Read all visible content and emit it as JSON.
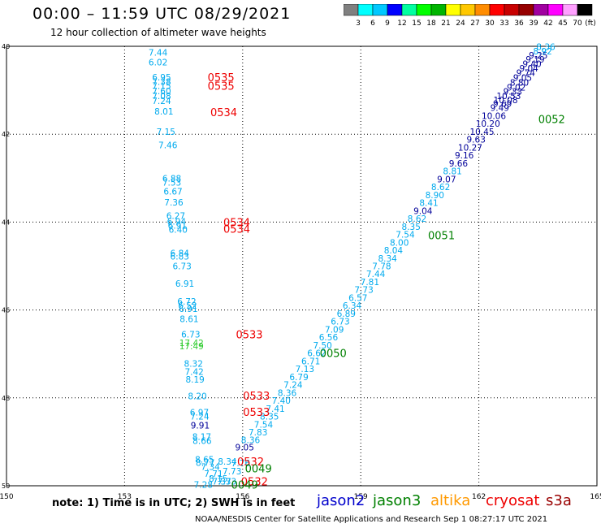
{
  "title": "00:00 – 11:59 UTC 08/29/2021",
  "subtitle": "12 hour collection of altimeter wave heights",
  "note": "note:  1) Time is in UTC;  2) SWH is in feet",
  "credit": "NOAA/NESDIS Center for Satellite Applications and Research     Sep  1 08:27:17 UTC 2021",
  "satellites": [
    {
      "name": "jason2",
      "color": "#0000cc"
    },
    {
      "name": "jason3",
      "color": "#008000"
    },
    {
      "name": "altika",
      "color": "#ff9900"
    },
    {
      "name": "cryosat",
      "color": "#ee0000"
    },
    {
      "name": "s3a",
      "color": "#990000"
    }
  ],
  "colorbar": {
    "labels": [
      "3",
      "6",
      "9",
      "12",
      "15",
      "18",
      "21",
      "24",
      "27",
      "30",
      "33",
      "36",
      "39",
      "42",
      "45",
      "70",
      "(ft)"
    ],
    "colors": [
      "#808080",
      "#00ffff",
      "#00c8ff",
      "#0000ff",
      "#00ffa0",
      "#00ff00",
      "#00b400",
      "#ffff00",
      "#ffc800",
      "#ff8c00",
      "#ff0000",
      "#c80000",
      "#960000",
      "#a000a0",
      "#ff00ff",
      "#ffa0ff",
      "#000000"
    ]
  },
  "chart_data": {
    "type": "scatter",
    "xlabel": "",
    "ylabel": "",
    "xlim": [
      150,
      165
    ],
    "ylim": [
      -50,
      -40
    ],
    "x_ticks": [
      150,
      153,
      156,
      159,
      162,
      165
    ],
    "y_ticks": [
      -40,
      -42,
      -44,
      -46,
      -48,
      -50
    ],
    "y_tick_labels": [
      "40",
      "42",
      "44",
      "46",
      "48",
      "50"
    ],
    "swh_points": [
      {
        "lon": 153.85,
        "lat": -40.14,
        "v": "7.44",
        "c": "#00aaee"
      },
      {
        "lon": 153.85,
        "lat": -40.36,
        "v": "6.02",
        "c": "#00aaee"
      },
      {
        "lon": 153.94,
        "lat": -40.7,
        "v": "6.95",
        "c": "#00aaee"
      },
      {
        "lon": 153.94,
        "lat": -40.8,
        "v": "7.38",
        "c": "#00aaee"
      },
      {
        "lon": 153.94,
        "lat": -40.9,
        "v": "7.15",
        "c": "#00aaee"
      },
      {
        "lon": 153.94,
        "lat": -41.02,
        "v": "7.60",
        "c": "#00aaee"
      },
      {
        "lon": 153.94,
        "lat": -41.13,
        "v": "7.08",
        "c": "#00aaee"
      },
      {
        "lon": 153.94,
        "lat": -41.24,
        "v": "7.24",
        "c": "#00aaee"
      },
      {
        "lon": 154.0,
        "lat": -41.48,
        "v": "8.01",
        "c": "#00aaee"
      },
      {
        "lon": 154.05,
        "lat": -41.94,
        "v": "7.15",
        "c": "#00aaee"
      },
      {
        "lon": 154.1,
        "lat": -42.25,
        "v": "7.46",
        "c": "#00aaee"
      },
      {
        "lon": 154.2,
        "lat": -43.0,
        "v": "6.88",
        "c": "#00aaee"
      },
      {
        "lon": 154.2,
        "lat": -43.1,
        "v": "7.53",
        "c": "#00aaee"
      },
      {
        "lon": 154.23,
        "lat": -43.3,
        "v": "6.67",
        "c": "#00aaee"
      },
      {
        "lon": 154.25,
        "lat": -43.55,
        "v": "7.36",
        "c": "#00aaee"
      },
      {
        "lon": 154.3,
        "lat": -43.85,
        "v": "6.27",
        "c": "#00aaee"
      },
      {
        "lon": 154.32,
        "lat": -43.98,
        "v": "6.94",
        "c": "#00aaee"
      },
      {
        "lon": 154.34,
        "lat": -44.08,
        "v": "6.91",
        "c": "#00aaee"
      },
      {
        "lon": 154.36,
        "lat": -44.17,
        "v": "6.40",
        "c": "#00aaee"
      },
      {
        "lon": 154.4,
        "lat": -44.7,
        "v": "6.84",
        "c": "#00aaee"
      },
      {
        "lon": 154.4,
        "lat": -44.78,
        "v": "6.83",
        "c": "#00aaee"
      },
      {
        "lon": 154.46,
        "lat": -45.0,
        "v": "6.73",
        "c": "#00aaee"
      },
      {
        "lon": 154.53,
        "lat": -45.4,
        "v": "6.91",
        "c": "#00aaee"
      },
      {
        "lon": 154.58,
        "lat": -45.8,
        "v": "6.72",
        "c": "#00aaee"
      },
      {
        "lon": 154.6,
        "lat": -45.9,
        "v": "6.52",
        "c": "#00aaee"
      },
      {
        "lon": 154.62,
        "lat": -45.97,
        "v": "6.91",
        "c": "#00aaee"
      },
      {
        "lon": 154.64,
        "lat": -46.2,
        "v": "8.61",
        "c": "#00aaee"
      },
      {
        "lon": 154.68,
        "lat": -46.55,
        "v": "6.73",
        "c": "#00aaee"
      },
      {
        "lon": 154.7,
        "lat": -46.75,
        "v": "17.42",
        "c": "#33cc33"
      },
      {
        "lon": 154.7,
        "lat": -46.82,
        "v": "17.49",
        "c": "#33cc33"
      },
      {
        "lon": 154.75,
        "lat": -47.22,
        "v": "8.32",
        "c": "#00aaee"
      },
      {
        "lon": 154.77,
        "lat": -47.4,
        "v": "7.42",
        "c": "#00aaee"
      },
      {
        "lon": 154.79,
        "lat": -47.58,
        "v": "8.19",
        "c": "#00aaee"
      },
      {
        "lon": 154.85,
        "lat": -47.96,
        "v": "8.20",
        "c": "#00aaee"
      },
      {
        "lon": 154.9,
        "lat": -48.33,
        "v": "6.97",
        "c": "#00aaee"
      },
      {
        "lon": 154.91,
        "lat": -48.42,
        "v": "7.24",
        "c": "#00aaee"
      },
      {
        "lon": 154.92,
        "lat": -48.62,
        "v": "9.91",
        "c": "#000099"
      },
      {
        "lon": 154.96,
        "lat": -48.88,
        "v": "8.17",
        "c": "#00aaee"
      },
      {
        "lon": 154.97,
        "lat": -48.97,
        "v": "8.66",
        "c": "#00aaee"
      },
      {
        "lon": 155.03,
        "lat": -49.4,
        "v": "8.65",
        "c": "#00aaee"
      },
      {
        "lon": 155.05,
        "lat": -49.47,
        "v": "8.77",
        "c": "#00aaee"
      },
      {
        "lon": 155.18,
        "lat": -49.57,
        "v": "7.34",
        "c": "#00aaee"
      },
      {
        "lon": 155.26,
        "lat": -49.72,
        "v": "7.71",
        "c": "#00aaee"
      },
      {
        "lon": 155.38,
        "lat": -49.83,
        "v": "8.15",
        "c": "#00aaee"
      },
      {
        "lon": 155.47,
        "lat": -49.9,
        "v": "7.37",
        "c": "#00aaee"
      },
      {
        "lon": 155.0,
        "lat": -49.97,
        "v": "7.28",
        "c": "#00aaee"
      },
      {
        "lon": 155.6,
        "lat": -49.9,
        "v": "7.33",
        "c": "#00aaee"
      },
      {
        "lon": 155.73,
        "lat": -49.67,
        "v": "7.73",
        "c": "#00aaee"
      },
      {
        "lon": 155.61,
        "lat": -49.45,
        "v": "8.34",
        "c": "#00aaee"
      },
      {
        "lon": 155.95,
        "lat": -49.48,
        "v": "7.76",
        "c": "#00aaee"
      },
      {
        "lon": 156.05,
        "lat": -49.12,
        "v": "9.05",
        "c": "#000099"
      },
      {
        "lon": 156.2,
        "lat": -48.96,
        "v": "8.36",
        "c": "#00aaee"
      },
      {
        "lon": 156.39,
        "lat": -48.78,
        "v": "7.83",
        "c": "#00aaee"
      },
      {
        "lon": 156.53,
        "lat": -48.6,
        "v": "7.54",
        "c": "#00aaee"
      },
      {
        "lon": 156.68,
        "lat": -48.42,
        "v": "8.35",
        "c": "#00aaee"
      },
      {
        "lon": 156.83,
        "lat": -48.24,
        "v": "7.41",
        "c": "#00aaee"
      },
      {
        "lon": 156.98,
        "lat": -48.06,
        "v": "7.40",
        "c": "#00aaee"
      },
      {
        "lon": 157.13,
        "lat": -47.88,
        "v": "8.36",
        "c": "#00aaee"
      },
      {
        "lon": 157.28,
        "lat": -47.7,
        "v": "7.24",
        "c": "#00aaee"
      },
      {
        "lon": 157.43,
        "lat": -47.52,
        "v": "6.79",
        "c": "#00aaee"
      },
      {
        "lon": 157.58,
        "lat": -47.34,
        "v": "7.13",
        "c": "#00aaee"
      },
      {
        "lon": 157.73,
        "lat": -47.16,
        "v": "6.71",
        "c": "#00aaee"
      },
      {
        "lon": 157.88,
        "lat": -46.98,
        "v": "6.62",
        "c": "#00aaee"
      },
      {
        "lon": 158.03,
        "lat": -46.8,
        "v": "7.50",
        "c": "#00aaee"
      },
      {
        "lon": 158.18,
        "lat": -46.62,
        "v": "6.56",
        "c": "#00aaee"
      },
      {
        "lon": 158.33,
        "lat": -46.44,
        "v": "7.09",
        "c": "#00aaee"
      },
      {
        "lon": 158.48,
        "lat": -46.26,
        "v": "6.73",
        "c": "#00aaee"
      },
      {
        "lon": 158.63,
        "lat": -46.08,
        "v": "6.89",
        "c": "#00aaee"
      },
      {
        "lon": 158.78,
        "lat": -45.9,
        "v": "6.34",
        "c": "#00aaee"
      },
      {
        "lon": 158.93,
        "lat": -45.72,
        "v": "6.57",
        "c": "#00aaee"
      },
      {
        "lon": 159.08,
        "lat": -45.54,
        "v": "7.73",
        "c": "#00aaee"
      },
      {
        "lon": 159.23,
        "lat": -45.36,
        "v": "7.81",
        "c": "#00aaee"
      },
      {
        "lon": 159.38,
        "lat": -45.18,
        "v": "7.44",
        "c": "#00aaee"
      },
      {
        "lon": 159.53,
        "lat": -45.0,
        "v": "7.78",
        "c": "#00aaee"
      },
      {
        "lon": 159.68,
        "lat": -44.82,
        "v": "8.34",
        "c": "#00aaee"
      },
      {
        "lon": 159.83,
        "lat": -44.64,
        "v": "8.04",
        "c": "#00aaee"
      },
      {
        "lon": 159.98,
        "lat": -44.46,
        "v": "8.00",
        "c": "#00aaee"
      },
      {
        "lon": 160.13,
        "lat": -44.28,
        "v": "7.54",
        "c": "#00aaee"
      },
      {
        "lon": 160.28,
        "lat": -44.1,
        "v": "8.35",
        "c": "#00aaee"
      },
      {
        "lon": 160.43,
        "lat": -43.92,
        "v": "8.62",
        "c": "#00aaee"
      },
      {
        "lon": 160.58,
        "lat": -43.74,
        "v": "9.04",
        "c": "#000099"
      },
      {
        "lon": 160.73,
        "lat": -43.56,
        "v": "8.41",
        "c": "#00aaee"
      },
      {
        "lon": 160.88,
        "lat": -43.38,
        "v": "8.90",
        "c": "#00aaee"
      },
      {
        "lon": 161.03,
        "lat": -43.2,
        "v": "8.62",
        "c": "#00aaee"
      },
      {
        "lon": 161.18,
        "lat": -43.02,
        "v": "9.07",
        "c": "#000099"
      },
      {
        "lon": 161.33,
        "lat": -42.84,
        "v": "8.81",
        "c": "#00aaee"
      },
      {
        "lon": 161.48,
        "lat": -42.66,
        "v": "9.66",
        "c": "#000099"
      },
      {
        "lon": 161.63,
        "lat": -42.48,
        "v": "9.16",
        "c": "#000099"
      },
      {
        "lon": 161.78,
        "lat": -42.3,
        "v": "10.27",
        "c": "#000099"
      },
      {
        "lon": 161.93,
        "lat": -42.12,
        "v": "9.63",
        "c": "#000099"
      },
      {
        "lon": 162.08,
        "lat": -41.94,
        "v": "10.45",
        "c": "#000099"
      },
      {
        "lon": 162.23,
        "lat": -41.76,
        "v": "10.20",
        "c": "#000099"
      },
      {
        "lon": 162.38,
        "lat": -41.58,
        "v": "10.06",
        "c": "#000099"
      },
      {
        "lon": 162.53,
        "lat": -41.4,
        "v": "9.49",
        "c": "#000099"
      },
      {
        "lon": 162.6,
        "lat": -41.3,
        "v": "9.69",
        "c": "#000099"
      },
      {
        "lon": 162.68,
        "lat": -41.22,
        "v": "10.08",
        "c": "#000099"
      },
      {
        "lon": 162.76,
        "lat": -41.13,
        "v": "10.53",
        "c": "#000099"
      },
      {
        "lon": 162.86,
        "lat": -41.03,
        "v": "9.33",
        "c": "#000099"
      },
      {
        "lon": 162.95,
        "lat": -40.93,
        "v": "9.02",
        "c": "#000099"
      },
      {
        "lon": 163.03,
        "lat": -40.82,
        "v": "8.80",
        "c": "#000099"
      },
      {
        "lon": 163.11,
        "lat": -40.71,
        "v": "9.05",
        "c": "#000099"
      },
      {
        "lon": 163.19,
        "lat": -40.6,
        "v": "9.74",
        "c": "#000099"
      },
      {
        "lon": 163.27,
        "lat": -40.5,
        "v": "9.04",
        "c": "#000099"
      },
      {
        "lon": 163.35,
        "lat": -40.4,
        "v": "9.40",
        "c": "#000099"
      },
      {
        "lon": 163.43,
        "lat": -40.3,
        "v": "9.19",
        "c": "#000099"
      },
      {
        "lon": 163.51,
        "lat": -40.2,
        "v": "9.25",
        "c": "#000099"
      },
      {
        "lon": 163.62,
        "lat": -40.11,
        "v": "8.92",
        "c": "#00aaee"
      },
      {
        "lon": 163.7,
        "lat": -40.01,
        "v": "8.36",
        "c": "#00aaee"
      }
    ],
    "time_labels": [
      {
        "lon": 155.45,
        "lat": -40.7,
        "t": "0535",
        "c": "#ee0000"
      },
      {
        "lon": 155.45,
        "lat": -40.9,
        "t": "0535",
        "c": "#ee0000"
      },
      {
        "lon": 155.52,
        "lat": -41.5,
        "t": "0534",
        "c": "#ee0000"
      },
      {
        "lon": 155.85,
        "lat": -44.0,
        "t": "0534",
        "c": "#ee0000"
      },
      {
        "lon": 155.85,
        "lat": -44.15,
        "t": "0534",
        "c": "#ee0000"
      },
      {
        "lon": 156.17,
        "lat": -46.55,
        "t": "0533",
        "c": "#ee0000"
      },
      {
        "lon": 156.35,
        "lat": -47.95,
        "t": "0533",
        "c": "#ee0000"
      },
      {
        "lon": 156.35,
        "lat": -48.32,
        "t": "0533",
        "c": "#ee0000"
      },
      {
        "lon": 156.2,
        "lat": -49.45,
        "t": "0532",
        "c": "#ee0000"
      },
      {
        "lon": 156.3,
        "lat": -49.9,
        "t": "0532",
        "c": "#ee0000"
      },
      {
        "lon": 156.4,
        "lat": -49.6,
        "t": "0049",
        "c": "#008000"
      },
      {
        "lon": 156.05,
        "lat": -49.97,
        "t": "0049",
        "c": "#008000"
      },
      {
        "lon": 158.3,
        "lat": -46.98,
        "t": "0050",
        "c": "#008000"
      },
      {
        "lon": 161.05,
        "lat": -44.3,
        "t": "0051",
        "c": "#008000"
      },
      {
        "lon": 163.85,
        "lat": -41.65,
        "t": "0052",
        "c": "#008000"
      }
    ]
  }
}
